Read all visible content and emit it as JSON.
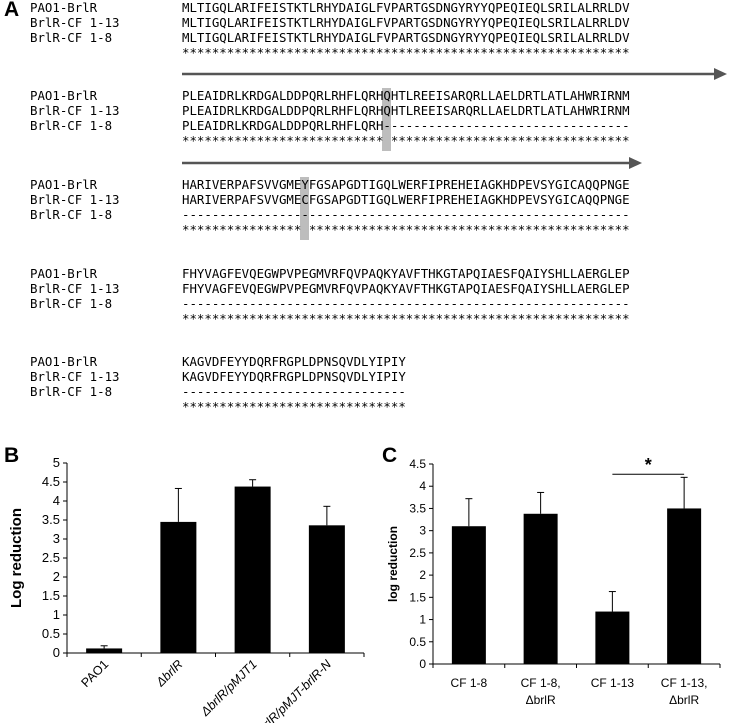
{
  "panel_labels": {
    "a": "A",
    "b": "B",
    "c": "C"
  },
  "alignment": {
    "blocks": [
      {
        "rows": [
          {
            "name": "PAO1-BrlR",
            "seq": "MLTIGQLARIFEISTKTLRHYDAIGLFVPARTGSDNGYRYYQPEQIEQLSRILALRRLDV"
          },
          {
            "name": "BrlR-CF 1-13",
            "seq": "MLTIGQLARIFEISTKTLRHYDAIGLFVPARTGSDNGYRYYQPEQIEQLSRILALRRLDV"
          },
          {
            "name": "BrlR-CF 1-8",
            "seq": "MLTIGQLARIFEISTKTLRHYDAIGLFVPARTGSDNGYRYYQPEQIEQLSRILALRRLDV"
          }
        ],
        "consensus": "************************************************************"
      },
      {
        "rows": [
          {
            "name": "PAO1-BrlR",
            "seq": "PLEAIDRLKRDGALDDPQRLRHFLQRHQHTLREEISARQRLLAELDRTLATLAHWRIRNM"
          },
          {
            "name": "BrlR-CF 1-13",
            "seq": "PLEAIDRLKRDGALDDPQRLRHFLQRHQHTLREEISARQRLLAELDRTLATLAHWRIRNM"
          },
          {
            "name": "BrlR-CF 1-8",
            "seq": "PLEAIDRLKRDGALDDPQRLRHFLQRH---------------------------------"
          }
        ],
        "consensus": "*************************** ********************************"
      },
      {
        "rows": [
          {
            "name": "PAO1-BrlR",
            "seq": "HARIVERPAFSVVGMEYFGSAPGDTIGQLWERFIPREHEIAGKHDPEVSYGICAQQPNGE"
          },
          {
            "name": "BrlR-CF 1-13",
            "seq": "HARIVERPAFSVVGMECFGSAPGDTIGQLWERFIPREHEIAGKHDPEVSYGICAQQPNGE"
          },
          {
            "name": "BrlR-CF 1-8",
            "seq": "------------------------------------------------------------"
          }
        ],
        "consensus": "**************** *******************************************"
      },
      {
        "rows": [
          {
            "name": "PAO1-BrlR",
            "seq": "FHYVAGFEVQEGWPVPEGMVRFQVPAQKYAVFTHKGTAPQIAESFQAIYSHLLAERGLEP"
          },
          {
            "name": "BrlR-CF 1-13",
            "seq": "FHYVAGFEVQEGWPVPEGMVRFQVPAQKYAVFTHKGTAPQIAESFQAIYSHLLAERGLEP"
          },
          {
            "name": "BrlR-CF 1-8",
            "seq": "------------------------------------------------------------"
          }
        ],
        "consensus": "************************************************************"
      },
      {
        "rows": [
          {
            "name": "PAO1-BrlR",
            "seq": "KAGVDFEYYDQRFRGPLDPNSQVDLYIPIY"
          },
          {
            "name": "BrlR-CF 1-13",
            "seq": "KAGVDFEYYDQRFRGPLDPNSQVDLYIPIY"
          },
          {
            "name": "BrlR-CF 1-8",
            "seq": "------------------------------"
          }
        ],
        "consensus": "******************************"
      }
    ],
    "highlight_color": "#bdbdbd",
    "arrow_color": "#555555"
  },
  "chart_data": [
    {
      "type": "bar",
      "panel": "B",
      "categories": [
        "PAO1",
        "ΔbrlR",
        "ΔbrlR/pMJT1",
        "ΔbrlR/pMJT-brlR-N"
      ],
      "values": [
        0.12,
        3.45,
        4.38,
        3.36
      ],
      "errors": [
        0.07,
        0.88,
        0.18,
        0.5
      ],
      "ylabel": "Log reduction",
      "ylim": [
        0,
        5
      ],
      "yticks": [
        "0",
        "0.5",
        "1",
        "1.5",
        "2",
        "2.5",
        "3",
        "3.5",
        "4",
        "4.5",
        "5"
      ],
      "color": "#000000"
    },
    {
      "type": "bar",
      "panel": "C",
      "categories": [
        "CF 1-8",
        "CF 1-8,\nΔbrlR",
        "CF 1-13",
        "CF 1-13,\nΔbrlR"
      ],
      "values": [
        3.1,
        3.38,
        1.18,
        3.5
      ],
      "errors": [
        0.62,
        0.48,
        0.45,
        0.7
      ],
      "ylabel": "log reduction",
      "ylim": [
        0,
        4.5
      ],
      "yticks": [
        "0",
        "0.5",
        "1",
        "1.5",
        "2",
        "2.5",
        "3",
        "3.5",
        "4",
        "4.5"
      ],
      "significance": {
        "from": 2,
        "to": 3,
        "label": "*"
      },
      "color": "#000000"
    }
  ]
}
